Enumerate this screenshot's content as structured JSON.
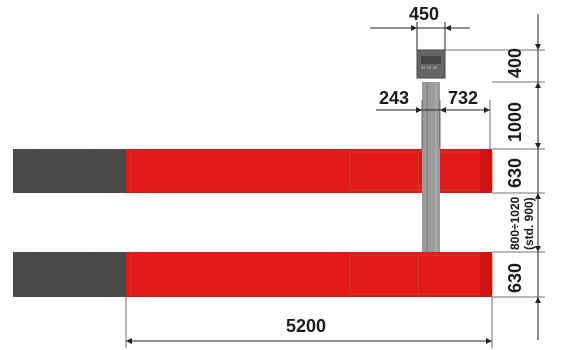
{
  "colors": {
    "runway_red": "#e31818",
    "runway_dark": "#4a4a4a",
    "column_gray": "#9b9b9b",
    "control_box": "#666666",
    "dimension_ink": "#222222"
  },
  "dimensions": {
    "control_box_width": "450",
    "control_box_depth": "400",
    "column_left_offset": "243",
    "column_right_offset": "732",
    "column_to_runway": "1000",
    "runway_top_width": "630",
    "runway_gap": "800÷1020",
    "runway_gap_std": "(std. 900)",
    "runway_bottom_width": "630",
    "runway_length": "5200"
  },
  "icons": {
    "control_box": "control-panel-icon",
    "arrow_heads": "dimension-arrow-icon"
  }
}
